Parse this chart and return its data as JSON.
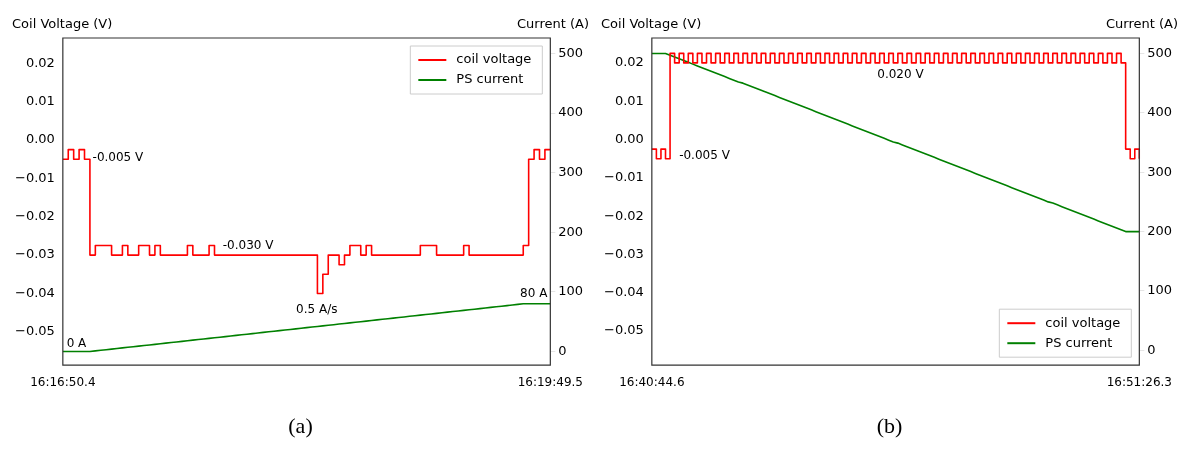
{
  "chart_data": [
    {
      "type": "line",
      "title": "(a)",
      "ylabel": "Coil Voltage (V)",
      "y2label": "Current (A)",
      "legend": "top right",
      "categories": [
        "16:16:50.4",
        null,
        null,
        null,
        null,
        null,
        null,
        null,
        null,
        null,
        null,
        null,
        null,
        null,
        null,
        null,
        null,
        null,
        null,
        null,
        null,
        null,
        null,
        null,
        null,
        null,
        null,
        null,
        null,
        null,
        null,
        null,
        null,
        null,
        null,
        null,
        null,
        null,
        null,
        null,
        null,
        null,
        null,
        null,
        null,
        null,
        null,
        null,
        null,
        null,
        null,
        null,
        null,
        null,
        null,
        null,
        null,
        null,
        null,
        null,
        null,
        null,
        null,
        null,
        null,
        null,
        null,
        null,
        null,
        null,
        null,
        null,
        null,
        null,
        null,
        null,
        null,
        null,
        null,
        null,
        null,
        null,
        null,
        null,
        null,
        null,
        null,
        null,
        null,
        null,
        "16:19:49.5"
      ],
      "ylim": [
        -0.0587,
        0.0266
      ],
      "yticks": [
        {
          "value": -0.05,
          "label": "−0.05"
        },
        {
          "value": -0.04,
          "label": "−0.04"
        },
        {
          "value": -0.03,
          "label": "−0.03"
        },
        {
          "value": -0.02,
          "label": "−0.02"
        },
        {
          "value": -0.01,
          "label": "−0.01"
        },
        {
          "value": 0,
          "label": "0.00"
        },
        {
          "value": 0.01,
          "label": "0.01"
        },
        {
          "value": 0.02,
          "label": "0.02"
        }
      ],
      "y2lim": [
        -23,
        526
      ],
      "y2ticks": [
        0,
        100,
        200,
        300,
        400,
        500
      ],
      "series": [
        {
          "name": "coil voltage",
          "type": "step",
          "color": "#ff0000",
          "values": [
            -0.005,
            -0.0025,
            -0.005,
            -0.0025,
            -0.005,
            -0.03,
            -0.0275,
            -0.0275,
            -0.0275,
            -0.03,
            -0.03,
            -0.0275,
            -0.03,
            -0.03,
            -0.0275,
            -0.0275,
            -0.03,
            -0.0275,
            -0.03,
            -0.03,
            -0.03,
            -0.03,
            -0.03,
            -0.0275,
            -0.03,
            -0.03,
            -0.03,
            -0.0275,
            -0.03,
            -0.03,
            -0.03,
            -0.03,
            -0.03,
            -0.03,
            -0.03,
            -0.03,
            -0.03,
            -0.03,
            -0.03,
            -0.03,
            -0.03,
            -0.03,
            -0.03,
            -0.03,
            -0.03,
            -0.03,
            -0.03,
            -0.04,
            -0.035,
            -0.03,
            -0.03,
            -0.0325,
            -0.03,
            -0.0275,
            -0.0275,
            -0.03,
            -0.0275,
            -0.03,
            -0.03,
            -0.03,
            -0.03,
            -0.03,
            -0.03,
            -0.03,
            -0.03,
            -0.03,
            -0.0275,
            -0.0275,
            -0.0275,
            -0.03,
            -0.03,
            -0.03,
            -0.03,
            -0.03,
            -0.0275,
            -0.03,
            -0.03,
            -0.03,
            -0.03,
            -0.03,
            -0.03,
            -0.03,
            -0.03,
            -0.03,
            -0.03,
            -0.0275,
            -0.005,
            -0.0025,
            -0.005,
            -0.0025,
            -0.0025
          ]
        },
        {
          "name": "PS current",
          "type": "line",
          "axis": "y2",
          "color": "#008000",
          "values": [
            0,
            0,
            0,
            0,
            0,
            0,
            1,
            2,
            3,
            4,
            5,
            6,
            7,
            8,
            9,
            10,
            11,
            12,
            13,
            14,
            15,
            16,
            17,
            18,
            19,
            20,
            21,
            22,
            23,
            24,
            25,
            26,
            27,
            28,
            29,
            30,
            31,
            32,
            33,
            34,
            35,
            36,
            37,
            38,
            39,
            40,
            41,
            42,
            43,
            44,
            45,
            46,
            47,
            48,
            49,
            50,
            51,
            52,
            53,
            54,
            55,
            56,
            57,
            58,
            59,
            60,
            61,
            62,
            63,
            64,
            65,
            66,
            67,
            68,
            69,
            70,
            71,
            72,
            73,
            74,
            75,
            76,
            77,
            78,
            79,
            80,
            80,
            80,
            80,
            80,
            80
          ]
        }
      ],
      "annotations": [
        "-0.005 V",
        "-0.030 V",
        "0.5 A/s",
        "0 A",
        "80 A"
      ]
    },
    {
      "type": "line",
      "title": "(b)",
      "ylabel": "Coil Voltage (V)",
      "y2label": "Current (A)",
      "legend": "bottom right",
      "categories": [
        "16:40:44.6",
        null,
        null,
        null,
        null,
        null,
        null,
        null,
        null,
        null,
        null,
        null,
        null,
        null,
        null,
        null,
        null,
        null,
        null,
        null,
        null,
        null,
        null,
        null,
        null,
        null,
        null,
        null,
        null,
        null,
        null,
        null,
        null,
        null,
        null,
        null,
        null,
        null,
        null,
        null,
        null,
        null,
        null,
        null,
        null,
        null,
        null,
        null,
        null,
        null,
        null,
        null,
        null,
        null,
        null,
        null,
        null,
        null,
        null,
        null,
        null,
        null,
        null,
        null,
        null,
        null,
        null,
        null,
        null,
        null,
        null,
        null,
        null,
        null,
        null,
        null,
        null,
        null,
        null,
        null,
        null,
        null,
        null,
        null,
        null,
        null,
        null,
        null,
        null,
        null,
        null,
        null,
        null,
        null,
        null,
        null,
        null,
        null,
        null,
        null,
        null,
        null,
        null,
        null,
        null,
        null,
        null,
        "16:51:26.3"
      ],
      "ylim": [
        -0.0589,
        0.0265
      ],
      "yticks": [
        {
          "value": -0.05,
          "label": "−0.05"
        },
        {
          "value": -0.04,
          "label": "−0.04"
        },
        {
          "value": -0.03,
          "label": "−0.03"
        },
        {
          "value": -0.02,
          "label": "−0.02"
        },
        {
          "value": -0.01,
          "label": "−0.01"
        },
        {
          "value": 0,
          "label": "0.00"
        },
        {
          "value": 0.01,
          "label": "0.01"
        },
        {
          "value": 0.02,
          "label": "0.02"
        }
      ],
      "y2lim": [
        -25,
        526
      ],
      "y2ticks": [
        0,
        100,
        200,
        300,
        400,
        500
      ],
      "series": [
        {
          "name": "coil voltage",
          "type": "step",
          "color": "#ff0000",
          "values": [
            -0.0025,
            -0.005,
            -0.0025,
            -0.005,
            0.0225,
            0.02,
            0.0225,
            0.02,
            0.0225,
            0.02,
            0.0225,
            0.02,
            0.0225,
            0.02,
            0.0225,
            0.02,
            0.0225,
            0.02,
            0.0225,
            0.02,
            0.0225,
            0.02,
            0.0225,
            0.02,
            0.0225,
            0.02,
            0.0225,
            0.02,
            0.0225,
            0.02,
            0.0225,
            0.02,
            0.0225,
            0.02,
            0.0225,
            0.02,
            0.0225,
            0.02,
            0.0225,
            0.02,
            0.0225,
            0.02,
            0.0225,
            0.02,
            0.0225,
            0.02,
            0.0225,
            0.02,
            0.0225,
            0.02,
            0.0225,
            0.02,
            0.0225,
            0.02,
            0.0225,
            0.02,
            0.0225,
            0.02,
            0.0225,
            0.02,
            0.0225,
            0.02,
            0.0225,
            0.02,
            0.0225,
            0.02,
            0.0225,
            0.02,
            0.0225,
            0.02,
            0.0225,
            0.02,
            0.0225,
            0.02,
            0.0225,
            0.02,
            0.0225,
            0.02,
            0.0225,
            0.02,
            0.0225,
            0.02,
            0.0225,
            0.02,
            0.0225,
            0.02,
            0.0225,
            0.02,
            0.0225,
            0.02,
            0.0225,
            0.02,
            0.0225,
            0.02,
            0.0225,
            0.02,
            0.0225,
            0.02,
            0.0225,
            0.02,
            0.0225,
            0.02,
            0.0225,
            0.02,
            -0.0025,
            -0.005,
            -0.0025,
            -0.005
          ]
        },
        {
          "name": "PS current",
          "type": "line",
          "axis": "y2",
          "color": "#008000",
          "values": [
            500,
            500,
            500,
            500,
            497,
            494,
            491,
            488,
            485,
            482,
            479,
            476,
            473,
            470,
            467,
            464,
            461,
            458,
            455,
            452,
            450,
            447,
            444,
            441,
            438,
            435,
            432,
            429,
            426,
            423,
            420,
            417,
            414,
            411,
            408,
            405,
            402,
            399,
            396,
            393,
            390,
            387,
            384,
            381,
            378,
            375,
            372,
            369,
            366,
            363,
            360,
            357,
            354,
            351,
            349,
            346,
            343,
            340,
            337,
            334,
            331,
            328,
            325,
            322,
            319,
            316,
            313,
            310,
            307,
            304,
            301,
            298,
            295,
            292,
            289,
            286,
            283,
            280,
            277,
            274,
            271,
            268,
            265,
            262,
            259,
            256,
            253,
            250,
            248,
            245,
            242,
            239,
            236,
            233,
            230,
            227,
            224,
            221,
            218,
            215,
            212,
            209,
            206,
            203,
            200,
            200,
            200,
            200
          ]
        }
      ],
      "annotations": [
        "0.020 V",
        "-0.005 V"
      ]
    }
  ]
}
